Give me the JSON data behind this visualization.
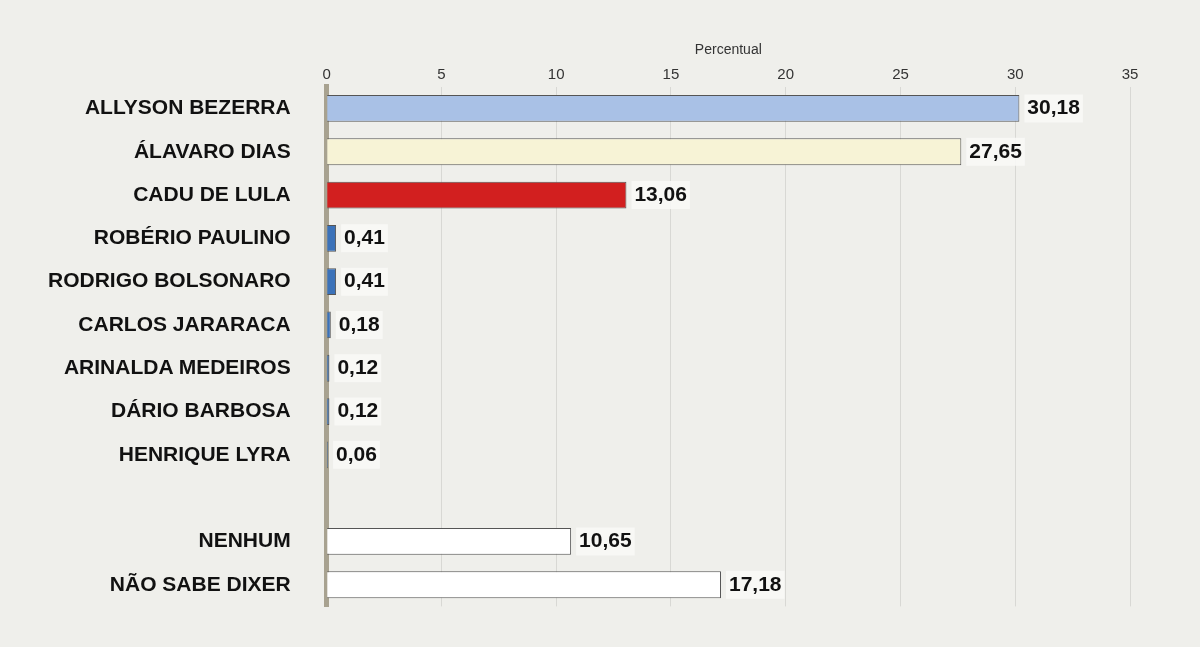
{
  "chart_data": {
    "type": "bar",
    "orientation": "horizontal",
    "xlabel": "Percentual",
    "categories": [
      "ALLYSON BEZERRA",
      "ÁLAVARO DIAS",
      "CADU DE LULA",
      "ROBÉRIO PAULINO",
      "RODRIGO BOLSONARO",
      "CARLOS JARARACA",
      "ARINALDA MEDEIROS",
      "DÁRIO BARBOSA",
      "HENRIQUE LYRA",
      null,
      "NENHUM",
      "NÃO SABE DIXER"
    ],
    "values": [
      30.18,
      27.65,
      13.06,
      0.41,
      0.41,
      0.18,
      0.12,
      0.12,
      0.06,
      null,
      10.65,
      17.18
    ],
    "value_labels": [
      "30,18",
      "27,65",
      "13,06",
      "0,41",
      "0,41",
      "0,18",
      "0,12",
      "0,12",
      "0,06",
      null,
      "10,65",
      "17,18"
    ],
    "colors": [
      "#a9c1e6",
      "#f7f3d6",
      "#d21f1f",
      "#3b72b9",
      "#3b72b9",
      "#3b72b9",
      "#3b72b9",
      "#3b72b9",
      "#3b72b9",
      "#ffffff",
      "#ffffff",
      "#ffffff"
    ],
    "xlim": [
      0,
      35
    ],
    "xticks": [
      0,
      5,
      10,
      15,
      20,
      25,
      30,
      35
    ],
    "grid": "x"
  }
}
